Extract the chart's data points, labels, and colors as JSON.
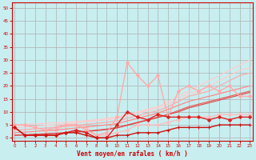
{
  "title": "",
  "xlabel": "Vent moyen/en rafales ( km/h )",
  "background_color": "#c8eef0",
  "grid_color": "#b0b0b0",
  "xlim": [
    -0.3,
    23.3
  ],
  "ylim": [
    -1,
    52
  ],
  "yticks": [
    0,
    5,
    10,
    15,
    20,
    25,
    30,
    35,
    40,
    45,
    50
  ],
  "xticks": [
    0,
    1,
    2,
    3,
    4,
    5,
    6,
    7,
    8,
    9,
    10,
    11,
    12,
    13,
    14,
    15,
    16,
    17,
    18,
    19,
    20,
    21,
    22,
    23
  ],
  "x": [
    0,
    1,
    2,
    3,
    4,
    5,
    6,
    7,
    8,
    9,
    10,
    11,
    12,
    13,
    14,
    15,
    16,
    17,
    18,
    19,
    20,
    21,
    22,
    23
  ],
  "lines": [
    {
      "y": [
        5,
        5,
        4,
        3,
        3,
        5,
        5,
        4,
        1,
        1,
        2,
        3,
        5,
        5,
        5,
        6,
        7,
        8,
        8,
        8,
        9,
        9,
        9,
        9
      ],
      "color": "#ffbbbb",
      "lw": 0.9,
      "marker": "D",
      "ms": 2.0,
      "zorder": 2
    },
    {
      "y": [
        5,
        5.2,
        5.4,
        5.6,
        5.8,
        6,
        6.3,
        6.6,
        7,
        7.5,
        8,
        9,
        10,
        11,
        12,
        14,
        16,
        18,
        20,
        22,
        24,
        26,
        28,
        30
      ],
      "color": "#ffcccc",
      "lw": 0.9,
      "marker": null,
      "ms": 0,
      "zorder": 2
    },
    {
      "y": [
        4,
        4.2,
        4.5,
        4.8,
        5,
        5.4,
        5.8,
        6.2,
        6.6,
        7,
        7.5,
        8.5,
        9.5,
        10.5,
        11.5,
        13,
        15,
        17,
        18,
        20,
        22,
        24,
        26,
        27
      ],
      "color": "#ffcccc",
      "lw": 0.9,
      "marker": null,
      "ms": 0,
      "zorder": 2
    },
    {
      "y": [
        3,
        3.2,
        3.5,
        3.8,
        4,
        4.4,
        4.8,
        5.2,
        5.6,
        6,
        6.5,
        7.5,
        8.5,
        9.5,
        10.5,
        12,
        14,
        16,
        17,
        18,
        20,
        22,
        24,
        25
      ],
      "color": "#ffaaaa",
      "lw": 0.9,
      "marker": null,
      "ms": 0,
      "zorder": 2
    },
    {
      "y": [
        5,
        5,
        4,
        3,
        4,
        5,
        5,
        3,
        1,
        2,
        8,
        29,
        24,
        20,
        24,
        8,
        18,
        20,
        18,
        20,
        18,
        20,
        16,
        16
      ],
      "color": "#ffaaaa",
      "lw": 1.0,
      "marker": "D",
      "ms": 2.0,
      "zorder": 3
    },
    {
      "y": [
        2,
        2.2,
        2.5,
        2.8,
        3,
        3.4,
        3.8,
        4.2,
        4.6,
        5,
        5.5,
        6.5,
        7.5,
        8.5,
        9.5,
        11,
        12.5,
        14,
        15,
        16,
        17,
        18,
        19,
        20
      ],
      "color": "#ff8888",
      "lw": 0.9,
      "marker": null,
      "ms": 0,
      "zorder": 2
    },
    {
      "y": [
        1,
        1.2,
        1.4,
        1.6,
        1.8,
        2,
        2.3,
        2.6,
        3,
        3.4,
        4,
        5,
        6,
        7,
        8,
        9,
        10.5,
        12,
        13,
        14,
        15,
        16,
        17,
        18
      ],
      "color": "#ee5555",
      "lw": 0.8,
      "marker": null,
      "ms": 0,
      "zorder": 2
    },
    {
      "y": [
        1,
        1.1,
        1.3,
        1.5,
        1.7,
        2,
        2.2,
        2.5,
        2.8,
        3.2,
        3.8,
        4.8,
        5.8,
        6.8,
        7.8,
        9,
        10,
        11.5,
        12.5,
        13.5,
        14.5,
        15.5,
        16.5,
        17.5
      ],
      "color": "#dd4444",
      "lw": 0.8,
      "marker": null,
      "ms": 0,
      "zorder": 2
    },
    {
      "y": [
        4,
        1,
        1,
        1,
        1,
        2,
        2,
        1,
        0,
        0,
        1,
        1,
        2,
        2,
        2,
        3,
        4,
        4,
        4,
        4,
        5,
        5,
        5,
        5
      ],
      "color": "#cc1111",
      "lw": 1.0,
      "marker": "+",
      "ms": 3.5,
      "zorder": 4
    },
    {
      "y": [
        4,
        1,
        1,
        1,
        1,
        2,
        3,
        2,
        0,
        0,
        5,
        10,
        8,
        7,
        9,
        8,
        8,
        8,
        8,
        7,
        8,
        7,
        8,
        8
      ],
      "color": "#dd2222",
      "lw": 1.0,
      "marker": "D",
      "ms": 2.0,
      "zorder": 3
    }
  ]
}
